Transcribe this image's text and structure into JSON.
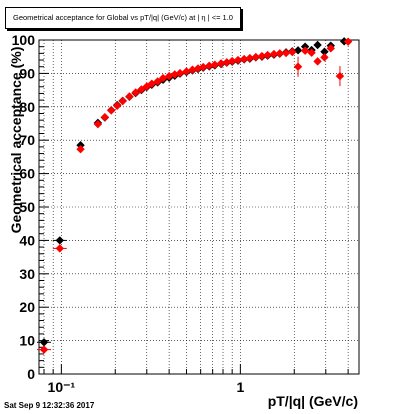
{
  "header": {
    "title": "Geometrical acceptance for Global vs pT/|q| (GeV/c) at | η | <= 1.0"
  },
  "footer": {
    "timestamp": "Sat Sep  9 12:32:36 2017"
  },
  "chart_data": {
    "type": "scatter",
    "title": "Geometrical acceptance for Global vs pT/|q| (GeV/c) at | η | <= 1.0",
    "xlabel": "pT/|q| (GeV/c)",
    "ylabel": "Geometrical acceptance (%)",
    "x_scale": "log",
    "xlim": [
      0.075,
      4.6
    ],
    "ylim": [
      0,
      100
    ],
    "x_tick_labels": [
      "10⁻¹",
      "1"
    ],
    "y_tick_labels": [
      "0",
      "10",
      "20",
      "30",
      "40",
      "50",
      "60",
      "70",
      "80",
      "90",
      "100"
    ],
    "grid": true,
    "legend": "none",
    "series": [
      {
        "color": "#000000",
        "marker": "diamond",
        "points": [
          [
            0.08,
            9.5
          ],
          [
            0.098,
            40.0
          ],
          [
            0.128,
            68.5
          ],
          [
            0.16,
            75.2
          ],
          [
            0.175,
            76.8
          ],
          [
            0.19,
            79.0
          ],
          [
            0.205,
            80.5
          ],
          [
            0.22,
            81.8
          ],
          [
            0.24,
            83.0
          ],
          [
            0.26,
            84.1
          ],
          [
            0.28,
            85.0
          ],
          [
            0.3,
            85.9
          ],
          [
            0.32,
            86.6
          ],
          [
            0.345,
            87.3
          ],
          [
            0.37,
            88.1
          ],
          [
            0.4,
            88.7
          ],
          [
            0.43,
            89.3
          ],
          [
            0.46,
            89.9
          ],
          [
            0.5,
            90.4
          ],
          [
            0.54,
            90.9
          ],
          [
            0.58,
            91.3
          ],
          [
            0.62,
            91.7
          ],
          [
            0.67,
            92.1
          ],
          [
            0.72,
            92.4
          ],
          [
            0.78,
            92.8
          ],
          [
            0.84,
            93.2
          ],
          [
            0.9,
            93.5
          ],
          [
            0.97,
            93.8
          ],
          [
            1.05,
            94.2
          ],
          [
            1.13,
            94.4
          ],
          [
            1.22,
            94.8
          ],
          [
            1.32,
            95.0
          ],
          [
            1.42,
            95.3
          ],
          [
            1.54,
            95.6
          ],
          [
            1.66,
            95.9
          ],
          [
            1.8,
            96.3
          ],
          [
            1.95,
            96.6
          ],
          [
            2.1,
            96.9
          ],
          [
            2.3,
            98.0
          ],
          [
            2.5,
            97.0
          ],
          [
            2.7,
            98.5
          ],
          [
            2.95,
            96.5
          ],
          [
            3.2,
            98.3
          ],
          [
            3.8,
            99.6
          ]
        ]
      },
      {
        "color": "#ff0000",
        "marker": "diamond",
        "points": [
          [
            0.08,
            7.3
          ],
          [
            0.098,
            37.6
          ],
          [
            0.128,
            67.3
          ],
          [
            0.16,
            74.8
          ],
          [
            0.175,
            76.9
          ],
          [
            0.19,
            78.9
          ],
          [
            0.205,
            80.3
          ],
          [
            0.22,
            81.7
          ],
          [
            0.24,
            83.1
          ],
          [
            0.26,
            84.3
          ],
          [
            0.28,
            85.2
          ],
          [
            0.3,
            86.1
          ],
          [
            0.32,
            86.9
          ],
          [
            0.345,
            87.6
          ],
          [
            0.37,
            88.6
          ],
          [
            0.4,
            89.2
          ],
          [
            0.43,
            89.7
          ],
          [
            0.46,
            90.1
          ],
          [
            0.5,
            90.6
          ],
          [
            0.54,
            91.1
          ],
          [
            0.58,
            91.5
          ],
          [
            0.62,
            91.9
          ],
          [
            0.67,
            92.3
          ],
          [
            0.72,
            92.6
          ],
          [
            0.78,
            93.0
          ],
          [
            0.84,
            93.3
          ],
          [
            0.9,
            93.7
          ],
          [
            0.97,
            94.0
          ],
          [
            1.05,
            94.3
          ],
          [
            1.13,
            94.6
          ],
          [
            1.22,
            94.9
          ],
          [
            1.32,
            95.2
          ],
          [
            1.42,
            95.5
          ],
          [
            1.54,
            95.8
          ],
          [
            1.66,
            96.0
          ],
          [
            1.8,
            96.1
          ],
          [
            1.95,
            96.4
          ],
          [
            2.1,
            92.0
          ],
          [
            2.3,
            96.8
          ],
          [
            2.5,
            96.2
          ],
          [
            2.7,
            93.6
          ],
          [
            2.95,
            94.8
          ],
          [
            3.2,
            97.5
          ],
          [
            3.6,
            89.2
          ],
          [
            4.0,
            99.5
          ]
        ]
      }
    ]
  }
}
